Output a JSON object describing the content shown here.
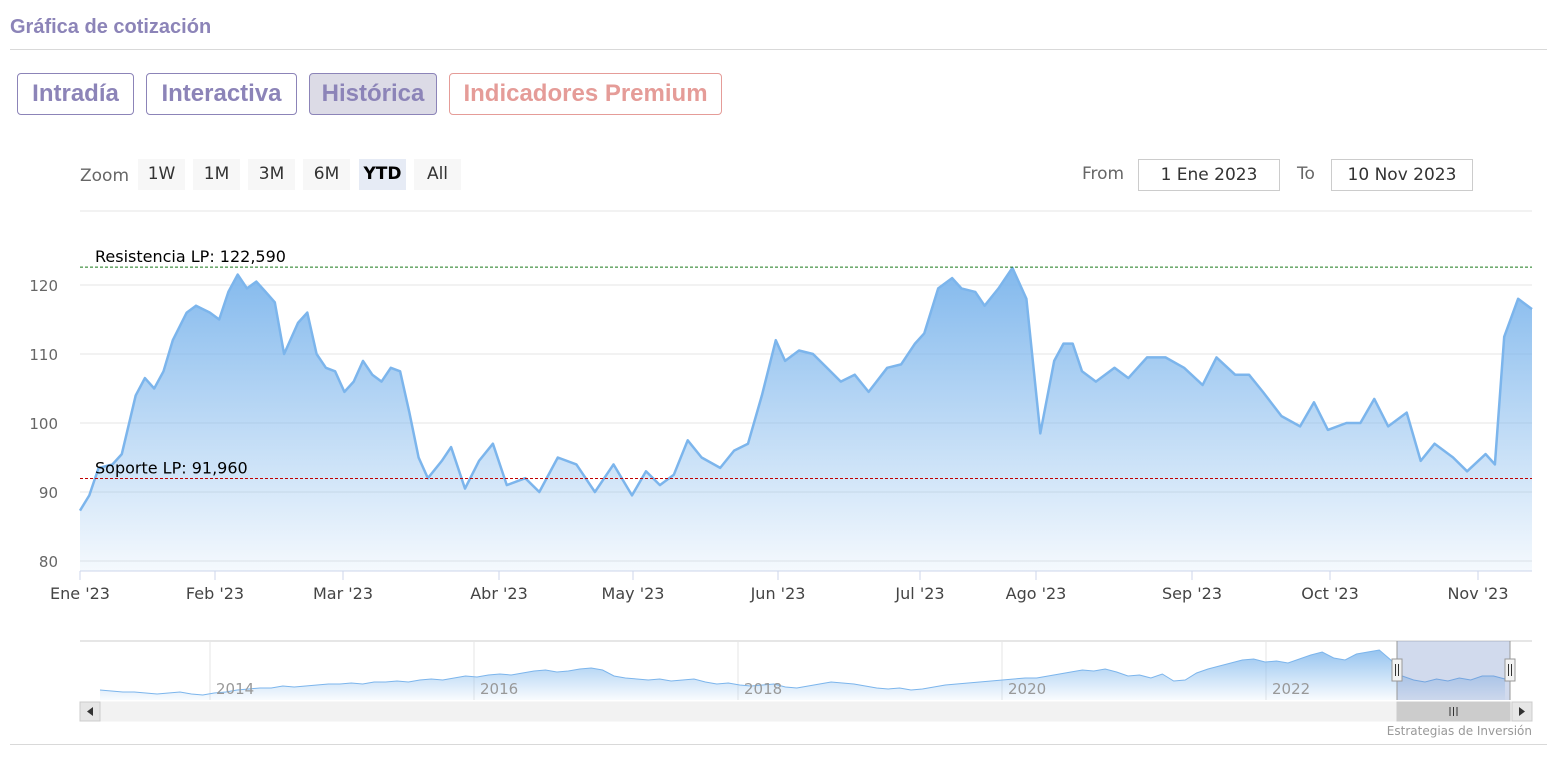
{
  "header": {
    "title": "Gráfica de cotización"
  },
  "tabs": [
    {
      "label": "Intradía",
      "active": false
    },
    {
      "label": "Interactiva",
      "active": false
    },
    {
      "label": "Histórica",
      "active": true
    },
    {
      "label": "Indicadores Premium",
      "active": false
    }
  ],
  "range_selector": {
    "zoom_label": "Zoom",
    "buttons": [
      "1W",
      "1M",
      "3M",
      "6M",
      "YTD",
      "All"
    ],
    "selected": "YTD",
    "from_label": "From",
    "from_value": "1 Ene 2023",
    "to_label": "To",
    "to_value": "10 Nov 2023"
  },
  "credits": "Estrategias de Inversión",
  "colors": {
    "line": "#7cb5ec",
    "resistance": "#1a7a1a",
    "support": "#c00000",
    "accent": "#8c84b8",
    "premium": "#e59c98"
  },
  "chart_data": {
    "type": "area",
    "xlabel": "",
    "ylabel": "",
    "ylim": [
      80,
      122.59
    ],
    "yticks": [
      80,
      90,
      100,
      110,
      120
    ],
    "grid": true,
    "x_tick_labels": [
      "Ene '23",
      "Feb '23",
      "Mar '23",
      "Abr '23",
      "May '23",
      "Jun '23",
      "Jul '23",
      "Ago '23",
      "Sep '23",
      "Oct '23",
      "Nov '23"
    ],
    "series": [
      {
        "x": [
          "2023-01-01",
          "2023-01-03",
          "2023-01-05",
          "2023-01-08",
          "2023-01-10",
          "2023-01-13",
          "2023-01-15",
          "2023-01-17",
          "2023-01-19",
          "2023-01-21",
          "2023-01-24",
          "2023-01-26",
          "2023-01-29",
          "2023-01-31",
          "2023-02-02",
          "2023-02-04",
          "2023-02-06",
          "2023-02-08",
          "2023-02-10",
          "2023-02-12",
          "2023-02-14",
          "2023-02-17",
          "2023-02-19",
          "2023-02-21",
          "2023-02-23",
          "2023-02-25",
          "2023-02-27",
          "2023-03-01",
          "2023-03-03",
          "2023-03-05",
          "2023-03-07",
          "2023-03-09",
          "2023-03-11",
          "2023-03-13",
          "2023-03-15",
          "2023-03-17",
          "2023-03-20",
          "2023-03-22",
          "2023-03-25",
          "2023-03-28",
          "2023-03-31",
          "2023-04-03",
          "2023-04-07",
          "2023-04-10",
          "2023-04-14",
          "2023-04-18",
          "2023-04-22",
          "2023-04-26",
          "2023-04-30",
          "2023-05-03",
          "2023-05-06",
          "2023-05-09",
          "2023-05-12",
          "2023-05-15",
          "2023-05-19",
          "2023-05-22",
          "2023-05-25",
          "2023-05-28",
          "2023-05-31",
          "2023-06-02",
          "2023-06-05",
          "2023-06-08",
          "2023-06-11",
          "2023-06-14",
          "2023-06-17",
          "2023-06-20",
          "2023-06-24",
          "2023-06-27",
          "2023-06-30",
          "2023-07-02",
          "2023-07-05",
          "2023-07-08",
          "2023-07-10",
          "2023-07-13",
          "2023-07-15",
          "2023-07-18",
          "2023-07-21",
          "2023-07-24",
          "2023-07-27",
          "2023-07-30",
          "2023-08-01",
          "2023-08-03",
          "2023-08-05",
          "2023-08-08",
          "2023-08-12",
          "2023-08-15",
          "2023-08-19",
          "2023-08-23",
          "2023-08-27",
          "2023-08-31",
          "2023-09-03",
          "2023-09-07",
          "2023-09-10",
          "2023-09-13",
          "2023-09-17",
          "2023-09-21",
          "2023-09-24",
          "2023-09-27",
          "2023-10-01",
          "2023-10-04",
          "2023-10-07",
          "2023-10-10",
          "2023-10-14",
          "2023-10-17",
          "2023-10-20",
          "2023-10-24",
          "2023-10-27",
          "2023-10-31",
          "2023-11-02",
          "2023-11-04",
          "2023-11-07",
          "2023-11-10"
        ],
        "values": [
          87.3,
          89.5,
          93.5,
          94.0,
          95.5,
          104.0,
          106.5,
          105.0,
          107.5,
          112.0,
          116.0,
          117.0,
          116.0,
          115.0,
          119.0,
          121.5,
          119.5,
          120.5,
          119.0,
          117.5,
          110.0,
          114.5,
          116.0,
          110.0,
          108.0,
          107.5,
          104.5,
          106.0,
          109.0,
          107.0,
          106.0,
          108.0,
          107.5,
          101.5,
          95.0,
          92.0,
          94.5,
          96.5,
          90.5,
          94.5,
          97.0,
          91.0,
          92.0,
          90.0,
          95.0,
          94.0,
          90.0,
          94.0,
          89.5,
          93.0,
          91.0,
          92.5,
          97.5,
          95.0,
          93.5,
          96.0,
          97.0,
          104.0,
          112.0,
          109.0,
          110.5,
          110.0,
          108.0,
          106.0,
          107.0,
          104.5,
          108.0,
          108.5,
          111.5,
          113.0,
          119.5,
          121.0,
          119.5,
          119.0,
          117.0,
          119.5,
          122.5,
          118.0,
          98.5,
          109.0,
          111.5,
          111.5,
          107.5,
          106.0,
          108.0,
          106.5,
          109.5,
          109.5,
          108.0,
          105.5,
          109.5,
          107.0,
          107.0,
          104.5,
          101.0,
          99.5,
          103.0,
          99.0,
          100.0,
          100.0,
          103.5,
          99.5,
          101.5,
          94.5,
          97.0,
          95.0,
          93.0,
          95.5,
          94.0,
          112.5,
          118.0,
          116.5
        ]
      }
    ],
    "plot_lines": [
      {
        "label": "Resistencia LP: 122,590",
        "value": 122.59,
        "color": "#1a7a1a"
      },
      {
        "label": "Soporte LP: 91,960",
        "value": 91.96,
        "color": "#c00000"
      }
    ],
    "navigator": {
      "x_tick_labels": [
        "2014",
        "2016",
        "2018",
        "2020",
        "2022"
      ]
    }
  }
}
